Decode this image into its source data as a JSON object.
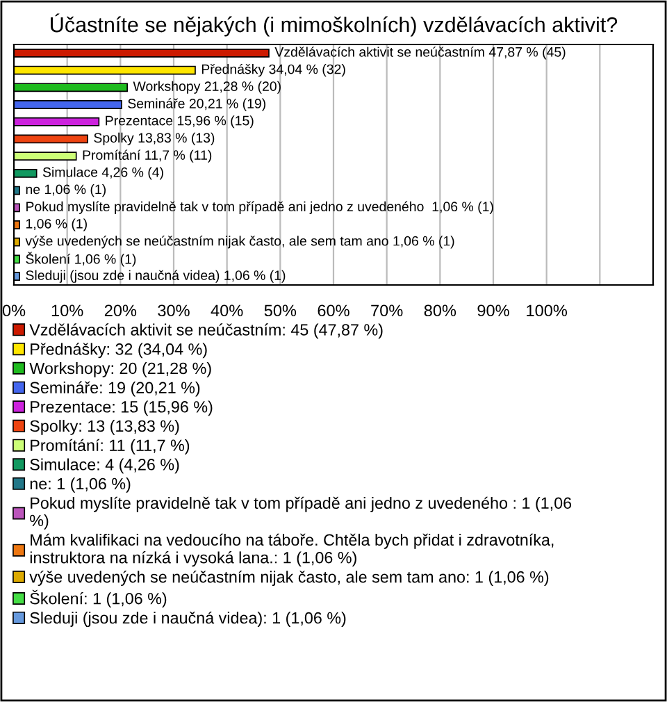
{
  "chart_data": {
    "type": "bar",
    "orientation": "horizontal",
    "title": "Účastníte se nějakých (i mimoškolních) vzdělávacích aktivit?",
    "categories": [
      null,
      null,
      null,
      null,
      null,
      null,
      null,
      null,
      null,
      null,
      null,
      null,
      null,
      null
    ],
    "xlim": [
      0,
      120
    ],
    "xticks": [
      {
        "value": 0,
        "label": "0%"
      },
      {
        "value": 10,
        "label": "10%"
      },
      {
        "value": 20,
        "label": "20%"
      },
      {
        "value": 30,
        "label": "30%"
      },
      {
        "value": 40,
        "label": "40%"
      },
      {
        "value": 50,
        "label": "50%"
      },
      {
        "value": 60,
        "label": "60%"
      },
      {
        "value": 70,
        "label": "70%"
      },
      {
        "value": 80,
        "label": "80%"
      },
      {
        "value": 90,
        "label": "90%"
      },
      {
        "value": 100,
        "label": "100%"
      },
      {
        "value": 110,
        "label": null
      }
    ],
    "grid": "x",
    "tick_labels": "x",
    "legend": "bottom",
    "series": [
      {
        "name": "Vzdělávacích aktivit se neúčastním: 45 (47,87 %)",
        "color": "#cc1a00",
        "values": [
          47.87,
          null,
          null,
          null,
          null,
          null,
          null,
          null,
          null,
          null,
          null,
          null,
          null,
          null
        ],
        "value_labels": [
          "Vzdělávacích aktivit se neúčastním 47,87 % (45)",
          null,
          null,
          null,
          null,
          null,
          null,
          null,
          null,
          null,
          null,
          null,
          null,
          null
        ]
      },
      {
        "name": "Přednášky: 32 (34,04 %)",
        "color": "#ffe600",
        "values": [
          null,
          34.04,
          null,
          null,
          null,
          null,
          null,
          null,
          null,
          null,
          null,
          null,
          null,
          null
        ],
        "value_labels": [
          null,
          "Přednášky 34,04 % (32)",
          null,
          null,
          null,
          null,
          null,
          null,
          null,
          null,
          null,
          null,
          null,
          null
        ]
      },
      {
        "name": "Workshopy: 20 (21,28 %)",
        "color": "#1fbb1f",
        "values": [
          null,
          null,
          21.28,
          null,
          null,
          null,
          null,
          null,
          null,
          null,
          null,
          null,
          null,
          null
        ],
        "value_labels": [
          null,
          null,
          "Workshopy 21,28 % (20)",
          null,
          null,
          null,
          null,
          null,
          null,
          null,
          null,
          null,
          null,
          null
        ]
      },
      {
        "name": "Semináře: 19 (20,21 %)",
        "color": "#4466ee",
        "values": [
          null,
          null,
          null,
          20.21,
          null,
          null,
          null,
          null,
          null,
          null,
          null,
          null,
          null,
          null
        ],
        "value_labels": [
          null,
          null,
          null,
          "Semináře 20,21 % (19)",
          null,
          null,
          null,
          null,
          null,
          null,
          null,
          null,
          null,
          null
        ]
      },
      {
        "name": "Prezentace: 15 (15,96 %)",
        "color": "#cc22dd",
        "values": [
          null,
          null,
          null,
          null,
          15.96,
          null,
          null,
          null,
          null,
          null,
          null,
          null,
          null,
          null
        ],
        "value_labels": [
          null,
          null,
          null,
          null,
          "Prezentace 15,96 % (15)",
          null,
          null,
          null,
          null,
          null,
          null,
          null,
          null,
          null
        ]
      },
      {
        "name": "Spolky: 13 (13,83 %)",
        "color": "#ee4411",
        "values": [
          null,
          null,
          null,
          null,
          null,
          13.83,
          null,
          null,
          null,
          null,
          null,
          null,
          null,
          null
        ],
        "value_labels": [
          null,
          null,
          null,
          null,
          null,
          "Spolky 13,83 % (13)",
          null,
          null,
          null,
          null,
          null,
          null,
          null,
          null
        ]
      },
      {
        "name": "Promítání: 11 (11,7 %)",
        "color": "#ccff77",
        "values": [
          null,
          null,
          null,
          null,
          null,
          null,
          11.7,
          null,
          null,
          null,
          null,
          null,
          null,
          null
        ],
        "value_labels": [
          null,
          null,
          null,
          null,
          null,
          null,
          "Promítání 11,7 % (11)",
          null,
          null,
          null,
          null,
          null,
          null,
          null
        ]
      },
      {
        "name": "Simulace: 4 (4,26 %)",
        "color": "#119960",
        "values": [
          null,
          null,
          null,
          null,
          null,
          null,
          null,
          4.26,
          null,
          null,
          null,
          null,
          null,
          null
        ],
        "value_labels": [
          null,
          null,
          null,
          null,
          null,
          null,
          null,
          "Simulace 4,26 % (4)",
          null,
          null,
          null,
          null,
          null,
          null
        ]
      },
      {
        "name": "ne: 1 (1,06 %)",
        "color": "#227788",
        "values": [
          null,
          null,
          null,
          null,
          null,
          null,
          null,
          null,
          1.06,
          null,
          null,
          null,
          null,
          null
        ],
        "value_labels": [
          null,
          null,
          null,
          null,
          null,
          null,
          null,
          null,
          "ne 1,06 % (1)",
          null,
          null,
          null,
          null,
          null
        ]
      },
      {
        "name": "Pokud myslíte pravidelně tak v tom případě ani jedno z uvedeného : 1 (1,06\n%)",
        "color": "#bb55bb",
        "values": [
          null,
          null,
          null,
          null,
          null,
          null,
          null,
          null,
          null,
          1.06,
          null,
          null,
          null,
          null
        ],
        "value_labels": [
          null,
          null,
          null,
          null,
          null,
          null,
          null,
          null,
          null,
          "Pokud myslíte pravidelně tak v tom případě ani jedno z uvedeného  1,06 % (1)",
          null,
          null,
          null,
          null
        ]
      },
      {
        "name": "Mám kvalifikaci na vedoucího na táboře. Chtěla bych přidat i zdravotníka,\ninstruktora na nízká i vysoká lana.: 1 (1,06 %)",
        "color": "#ee7711",
        "values": [
          null,
          null,
          null,
          null,
          null,
          null,
          null,
          null,
          null,
          null,
          1.06,
          null,
          null,
          null
        ],
        "value_labels": [
          null,
          null,
          null,
          null,
          null,
          null,
          null,
          null,
          null,
          null,
          "1,06 % (1)",
          null,
          null,
          null
        ]
      },
      {
        "name": "výše uvedených se neúčastním nijak často, ale sem tam ano: 1 (1,06 %)",
        "color": "#ddaa00",
        "values": [
          null,
          null,
          null,
          null,
          null,
          null,
          null,
          null,
          null,
          null,
          null,
          1.06,
          null,
          null
        ],
        "value_labels": [
          null,
          null,
          null,
          null,
          null,
          null,
          null,
          null,
          null,
          null,
          null,
          "výše uvedených se neúčastním nijak často, ale sem tam ano 1,06 % (1)",
          null,
          null
        ]
      },
      {
        "name": "Školení: 1 (1,06 %)",
        "color": "#44dd44",
        "values": [
          null,
          null,
          null,
          null,
          null,
          null,
          null,
          null,
          null,
          null,
          null,
          null,
          1.06,
          null
        ],
        "value_labels": [
          null,
          null,
          null,
          null,
          null,
          null,
          null,
          null,
          null,
          null,
          null,
          null,
          "Školení 1,06 % (1)",
          null
        ]
      },
      {
        "name": "Sleduji (jsou zde i naučná videa): 1 (1,06 %)",
        "color": "#6699dd",
        "values": [
          null,
          null,
          null,
          null,
          null,
          null,
          null,
          null,
          null,
          null,
          null,
          null,
          null,
          1.06
        ],
        "value_labels": [
          null,
          null,
          null,
          null,
          null,
          null,
          null,
          null,
          null,
          null,
          null,
          null,
          null,
          "Sleduji (jsou zde i naučná videa) 1,06 % (1)"
        ]
      }
    ]
  }
}
